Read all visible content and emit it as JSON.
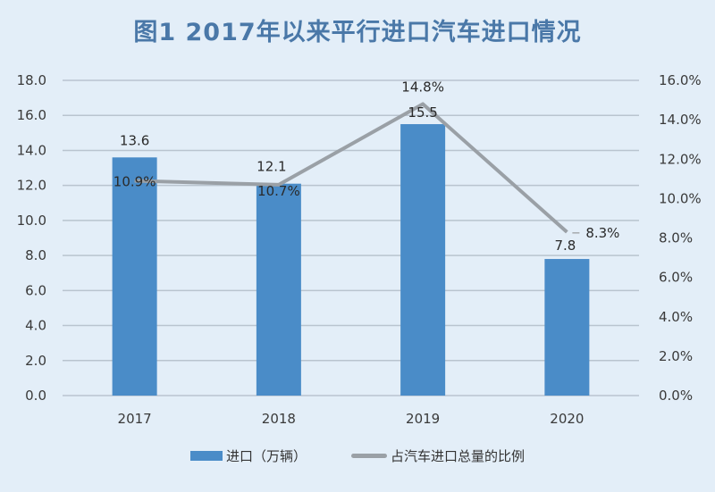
{
  "chart_data": {
    "type": "bar",
    "title": "图1 2017年以来平行进口汽车进口情况",
    "categories": [
      "2017",
      "2018",
      "2019",
      "2020"
    ],
    "series": [
      {
        "name": "进口（万辆）",
        "type": "bar",
        "axis": "left",
        "values": [
          13.6,
          12.1,
          15.5,
          7.8
        ],
        "labels": [
          "13.6",
          "12.1",
          "15.5",
          "7.8"
        ],
        "color": "#4a8cc8"
      },
      {
        "name": "占汽车进口总量的比例",
        "type": "line",
        "axis": "right",
        "values": [
          10.9,
          10.7,
          14.8,
          8.3
        ],
        "labels": [
          "10.9%",
          "10.7%",
          "14.8%",
          "8.3%"
        ],
        "color": "#9aa0a6"
      }
    ],
    "y_left": {
      "range": [
        0,
        18
      ],
      "ticks": [
        "0.0",
        "2.0",
        "4.0",
        "6.0",
        "8.0",
        "10.0",
        "12.0",
        "14.0",
        "16.0",
        "18.0"
      ]
    },
    "y_right": {
      "range": [
        0,
        16
      ],
      "ticks": [
        "0.0%",
        "2.0%",
        "4.0%",
        "6.0%",
        "8.0%",
        "10.0%",
        "12.0%",
        "14.0%",
        "16.0%"
      ]
    },
    "grid": true,
    "legend": "bottom"
  }
}
